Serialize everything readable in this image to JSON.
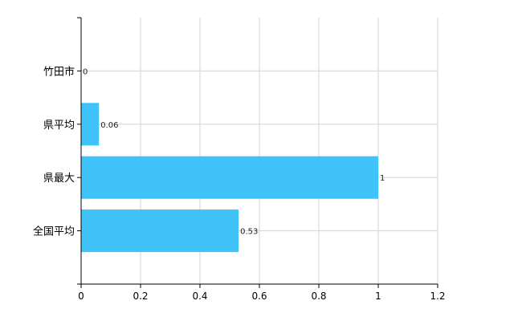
{
  "chart_data": {
    "type": "bar",
    "orientation": "horizontal",
    "categories": [
      "竹田市",
      "県平均",
      "県最大",
      "全国平均"
    ],
    "values": [
      0,
      0.06,
      1,
      0.53
    ],
    "data_labels": [
      "0",
      "0.06",
      "1",
      "0.53"
    ],
    "xlim": [
      0,
      1.2
    ],
    "xticks": [
      "0",
      "0.2",
      "0.4",
      "0.6",
      "0.8",
      "1",
      "1.2"
    ],
    "grid": true,
    "legend": "none",
    "bar_color": "#3fc3f8",
    "label_colors": [
      "#1a6fb5",
      "#222222",
      "#8b1a1a",
      "#222222"
    ]
  }
}
